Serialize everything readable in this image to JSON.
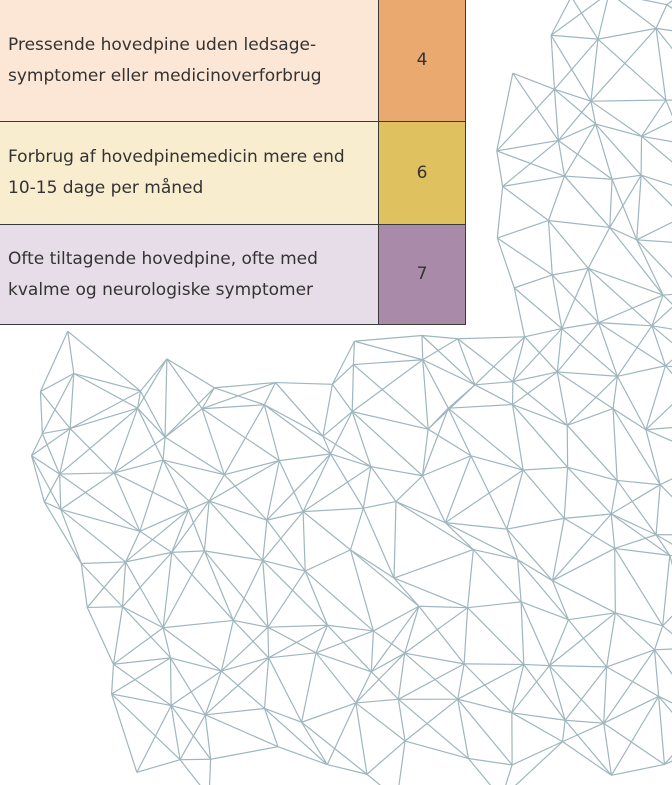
{
  "table": {
    "rows": [
      [
        "Pressende hovedpine uden ledsage- symptomer eller medicinoverforbrug",
        4
      ],
      [
        "Forbrug af hovedpinemedicin mere end 10-15 dage per måned",
        6
      ],
      [
        "Ofte tiltagende hovedpine, ofte med kvalme og neurologiske symptomer",
        7
      ]
    ]
  }
}
